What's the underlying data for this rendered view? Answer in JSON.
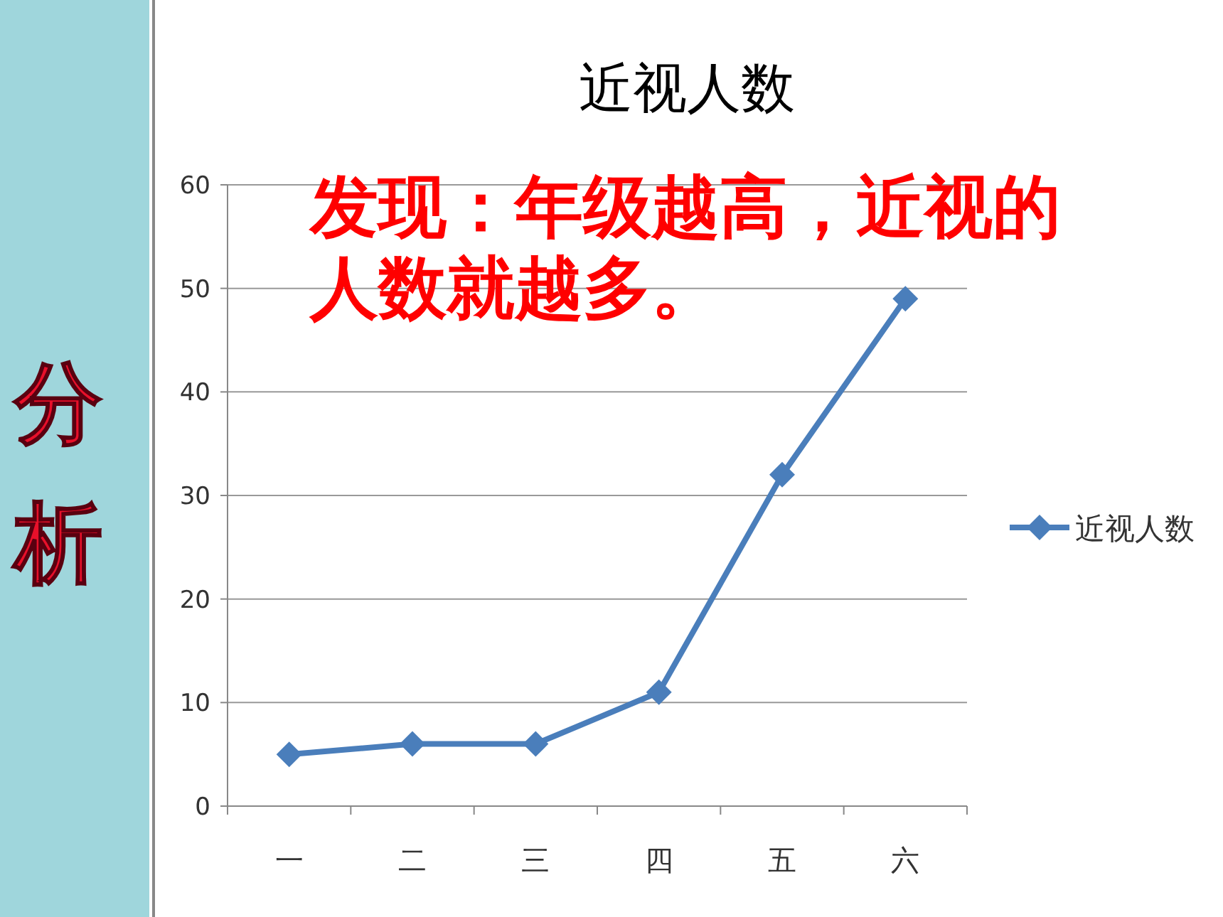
{
  "chart_data": {
    "type": "line",
    "title": "近视人数",
    "categories": [
      "一",
      "二",
      "三",
      "四",
      "五",
      "六"
    ],
    "series": [
      {
        "name": "近视人数",
        "color": "#4a7ebb",
        "values": [
          5,
          6,
          6,
          11,
          32,
          49
        ]
      }
    ],
    "ylim": [
      0,
      60
    ],
    "yticks": [
      0,
      10,
      20,
      30,
      40,
      50,
      60
    ],
    "grid": "y",
    "legend": "right",
    "marker": "diamond",
    "line_style": "solid",
    "annotations": [
      "发现：年级越高，近视的人数就越多。",
      "分析"
    ]
  }
}
